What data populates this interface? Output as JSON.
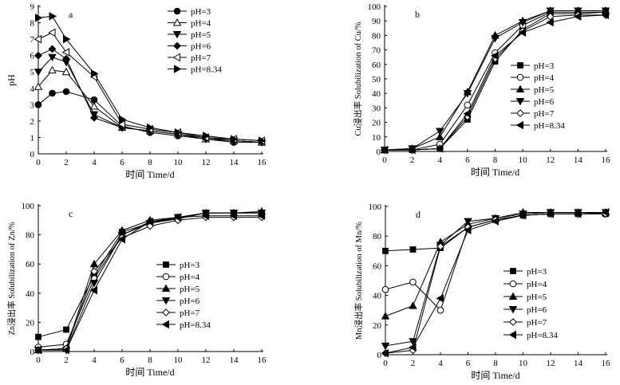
{
  "chart_data": [
    {
      "type": "line",
      "panel_label": "a",
      "xlabel": "时间 Time/d",
      "ylabel": "pH",
      "xlim": [
        0,
        16
      ],
      "ylim": [
        0,
        9
      ],
      "xticks": [
        0,
        2,
        4,
        6,
        8,
        10,
        12,
        14,
        16
      ],
      "yticks": [
        0,
        1,
        2,
        3,
        4,
        5,
        6,
        7,
        8,
        9
      ],
      "legend_position": "top-right",
      "x": [
        0,
        1,
        2,
        4,
        6,
        8,
        10,
        12,
        14,
        16
      ],
      "series": [
        {
          "name": "pH=3",
          "marker": "circle-filled",
          "values": [
            3.0,
            3.7,
            3.8,
            3.3,
            1.7,
            1.3,
            1.1,
            0.9,
            0.7,
            0.7
          ]
        },
        {
          "name": "pH=4",
          "marker": "triangle-up-open",
          "values": [
            4.1,
            5.1,
            5.0,
            2.9,
            1.6,
            1.4,
            1.2,
            0.9,
            0.8,
            0.7
          ]
        },
        {
          "name": "pH=5",
          "marker": "triangle-down-filled",
          "values": [
            5.0,
            5.9,
            5.6,
            2.4,
            1.6,
            1.4,
            1.2,
            0.9,
            0.8,
            0.7
          ]
        },
        {
          "name": "pH=6",
          "marker": "diamond-filled",
          "values": [
            6.0,
            6.4,
            5.8,
            2.2,
            1.6,
            1.4,
            1.2,
            1.0,
            0.8,
            0.7
          ]
        },
        {
          "name": "pH=7",
          "marker": "triangle-left-open",
          "values": [
            7.0,
            7.4,
            6.2,
            4.7,
            1.8,
            1.5,
            1.3,
            1.0,
            0.9,
            0.8
          ]
        },
        {
          "name": "pH=8.34",
          "marker": "triangle-right-filled",
          "values": [
            8.3,
            8.4,
            7.0,
            4.9,
            2.1,
            1.6,
            1.3,
            1.1,
            0.9,
            0.8
          ]
        }
      ]
    },
    {
      "type": "line",
      "panel_label": "b",
      "xlabel": "时间 Time/d",
      "ylabel": "Cu浸出率 Solubilization of Cu/%",
      "xlim": [
        0,
        16
      ],
      "ylim": [
        0,
        100
      ],
      "xticks": [
        0,
        2,
        4,
        6,
        8,
        10,
        12,
        14,
        16
      ],
      "yticks": [
        0,
        10,
        20,
        30,
        40,
        50,
        60,
        70,
        80,
        90,
        100
      ],
      "legend_position": "center-right",
      "x": [
        0,
        2,
        4,
        6,
        8,
        10,
        12,
        14,
        16
      ],
      "series": [
        {
          "name": "pH=3",
          "marker": "square-filled",
          "values": [
            1,
            1,
            2,
            22,
            62,
            84,
            95,
            95,
            96
          ]
        },
        {
          "name": "pH=4",
          "marker": "circle-open",
          "values": [
            1,
            1,
            5,
            32,
            68,
            87,
            96,
            96,
            96
          ]
        },
        {
          "name": "pH=5",
          "marker": "triangle-up-filled",
          "values": [
            1,
            2,
            10,
            41,
            80,
            90,
            97,
            97,
            97
          ]
        },
        {
          "name": "pH=6",
          "marker": "triangle-down-filled",
          "values": [
            1,
            2,
            14,
            40,
            78,
            89,
            97,
            97,
            97
          ]
        },
        {
          "name": "pH=7",
          "marker": "diamond-open",
          "values": [
            1,
            1,
            2,
            24,
            64,
            83,
            93,
            94,
            94
          ]
        },
        {
          "name": "pH=8.34",
          "marker": "triangle-left-filled",
          "values": [
            1,
            1,
            2,
            26,
            66,
            82,
            89,
            93,
            94
          ]
        }
      ]
    },
    {
      "type": "line",
      "panel_label": "c",
      "xlabel": "时间 Time/d",
      "ylabel": "Zn浸出率 Solubilization of Zn/%",
      "xlim": [
        0,
        16
      ],
      "ylim": [
        0,
        100
      ],
      "xticks": [
        0,
        2,
        4,
        6,
        8,
        10,
        12,
        14,
        16
      ],
      "yticks": [
        0,
        20,
        40,
        60,
        80,
        100
      ],
      "legend_position": "center-right",
      "x": [
        0,
        2,
        4,
        6,
        8,
        10,
        12,
        14,
        16
      ],
      "series": [
        {
          "name": "pH=3",
          "marker": "square-filled",
          "values": [
            10,
            15,
            52,
            82,
            88,
            91,
            95,
            95,
            95
          ]
        },
        {
          "name": "pH=4",
          "marker": "circle-open",
          "values": [
            3,
            5,
            50,
            80,
            89,
            91,
            95,
            95,
            95
          ]
        },
        {
          "name": "pH=5",
          "marker": "triangle-up-filled",
          "values": [
            1,
            2,
            60,
            83,
            90,
            92,
            95,
            95,
            96
          ]
        },
        {
          "name": "pH=6",
          "marker": "triangle-down-filled",
          "values": [
            1,
            1,
            47,
            80,
            88,
            92,
            95,
            95,
            95
          ]
        },
        {
          "name": "pH=7",
          "marker": "diamond-open",
          "values": [
            1,
            2,
            55,
            78,
            86,
            90,
            92,
            92,
            92
          ]
        },
        {
          "name": "pH=8.34",
          "marker": "triangle-left-filled",
          "values": [
            1,
            1,
            42,
            77,
            89,
            92,
            93,
            93,
            93
          ]
        }
      ]
    },
    {
      "type": "line",
      "panel_label": "d",
      "xlabel": "时间 Time/d",
      "ylabel": "Mn浸出率 Solubilization of Mn/%",
      "xlim": [
        0,
        16
      ],
      "ylim": [
        0,
        100
      ],
      "xticks": [
        0,
        2,
        4,
        6,
        8,
        10,
        12,
        14,
        16
      ],
      "yticks": [
        0,
        20,
        40,
        60,
        80,
        100
      ],
      "legend_position": "center-right",
      "x": [
        0,
        2,
        4,
        6,
        8,
        10,
        12,
        14,
        16
      ],
      "series": [
        {
          "name": "pH=3",
          "marker": "square-filled",
          "values": [
            70,
            71,
            72,
            86,
            91,
            94,
            95,
            95,
            95
          ]
        },
        {
          "name": "pH=4",
          "marker": "circle-open",
          "values": [
            44,
            49,
            30,
            86,
            91,
            94,
            95,
            95,
            95
          ]
        },
        {
          "name": "pH=5",
          "marker": "triangle-up-filled",
          "values": [
            26,
            33,
            76,
            88,
            92,
            96,
            96,
            96,
            96
          ]
        },
        {
          "name": "pH=6",
          "marker": "triangle-down-filled",
          "values": [
            6,
            9,
            74,
            90,
            92,
            95,
            96,
            96,
            96
          ]
        },
        {
          "name": "pH=7",
          "marker": "diamond-open",
          "values": [
            1,
            3,
            73,
            86,
            91,
            94,
            95,
            95,
            95
          ]
        },
        {
          "name": "pH=8.34",
          "marker": "triangle-left-filled",
          "values": [
            1,
            5,
            38,
            84,
            90,
            94,
            95,
            95,
            96
          ]
        }
      ]
    }
  ]
}
